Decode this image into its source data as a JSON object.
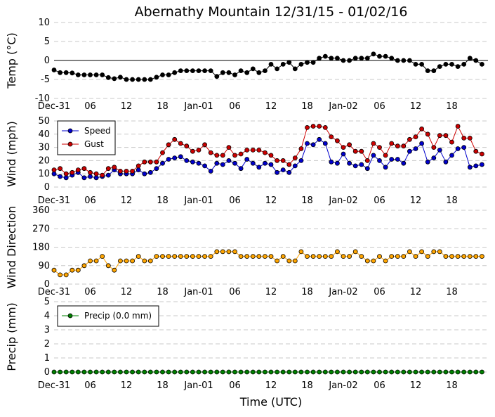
{
  "title": "Abernathy Mountain 12/31/15 - 01/02/16",
  "xlabel": "Time (UTC)",
  "x_tick_labels": [
    "Dec-31",
    "06",
    "12",
    "18",
    "Jan-01",
    "06",
    "12",
    "18",
    "Jan-02",
    "06",
    "12",
    "18"
  ],
  "colors": {
    "temp": "#000000",
    "speed": "#0000cc",
    "gust": "#cc0000",
    "dir": "#ffa500",
    "precip": "#008000"
  },
  "chart_data": [
    {
      "type": "line",
      "title": "",
      "ylabel": "Temp (°C)",
      "ylim": [
        -10,
        10
      ],
      "yticks": [
        -10,
        -5,
        0,
        5,
        10
      ],
      "x_hours": {
        "start": 0,
        "step": 1,
        "count": 72
      },
      "reference_line": 0,
      "series": [
        {
          "name": "Temp",
          "color": "#000000",
          "values": [
            -2.5,
            -3.2,
            -3.2,
            -3.3,
            -3.8,
            -3.8,
            -3.8,
            -3.8,
            -3.8,
            -4.5,
            -4.8,
            -4.4,
            -5,
            -5,
            -5,
            -5,
            -5,
            -4.4,
            -3.8,
            -3.8,
            -3.2,
            -2.7,
            -2.7,
            -2.7,
            -2.7,
            -2.7,
            -2.7,
            -4.2,
            -3.2,
            -3.2,
            -3.8,
            -2.7,
            -3.2,
            -2.2,
            -3.2,
            -2.7,
            -1,
            -2.2,
            -1,
            -0.5,
            -2.2,
            -1,
            -0.5,
            -0.5,
            0.6,
            1.1,
            0.6,
            0.6,
            0,
            0,
            0.6,
            0.6,
            0.6,
            1.7,
            1.1,
            1.1,
            0.6,
            0,
            0,
            0,
            -1,
            -1,
            -2.7,
            -2.7,
            -1.6,
            -1,
            -1,
            -1.6,
            -1,
            0.6,
            0,
            -1
          ]
        }
      ]
    },
    {
      "type": "line",
      "title": "",
      "ylabel": "Wind (mph)",
      "ylim": [
        0,
        50
      ],
      "yticks": [
        0,
        10,
        20,
        30,
        40,
        50
      ],
      "x_hours": {
        "start": 0,
        "step": 1,
        "count": 72
      },
      "legend": {
        "location": "top-left",
        "entries": [
          "Speed",
          "Gust"
        ]
      },
      "series": [
        {
          "name": "Speed",
          "color": "#0000cc",
          "values": [
            10,
            8,
            7,
            9,
            11,
            7,
            8,
            7,
            8,
            9,
            13,
            10,
            10,
            10,
            13,
            10,
            11,
            14,
            18,
            21,
            22,
            23,
            20,
            19,
            18,
            16,
            12,
            18,
            17,
            20,
            18,
            14,
            21,
            18,
            15,
            18,
            17,
            11,
            13,
            11,
            16,
            20,
            33,
            32,
            36,
            33,
            19,
            18,
            25,
            18,
            16,
            17,
            14,
            24,
            20,
            15,
            21,
            21,
            18,
            27,
            29,
            33,
            19,
            22,
            28,
            19,
            24,
            29,
            30,
            15,
            16,
            17
          ]
        },
        {
          "name": "Gust",
          "color": "#cc0000",
          "values": [
            13,
            14,
            10,
            11,
            13,
            14,
            11,
            10,
            9,
            14,
            15,
            12,
            12,
            12,
            16,
            19,
            19,
            19,
            26,
            32,
            36,
            33,
            31,
            27,
            28,
            32,
            26,
            24,
            24,
            30,
            24,
            25,
            28,
            28,
            28,
            26,
            24,
            20,
            20,
            17,
            22,
            29,
            45,
            46,
            46,
            45,
            38,
            35,
            30,
            32,
            27,
            27,
            20,
            33,
            30,
            24,
            33,
            31,
            31,
            36,
            38,
            44,
            40,
            30,
            39,
            39,
            34,
            46,
            37,
            37,
            27,
            25
          ]
        }
      ]
    },
    {
      "type": "scatter",
      "title": "",
      "ylabel": "Wind Direction",
      "ylim": [
        0,
        360
      ],
      "yticks": [
        0,
        90,
        180,
        270,
        360
      ],
      "x_hours": {
        "start": 0,
        "step": 1,
        "count": 72
      },
      "series": [
        {
          "name": "Direction",
          "color": "#ffa500",
          "values": [
            68,
            45,
            45,
            68,
            68,
            90,
            113,
            113,
            135,
            90,
            68,
            113,
            113,
            113,
            135,
            113,
            113,
            135,
            135,
            135,
            135,
            135,
            135,
            135,
            135,
            135,
            135,
            158,
            158,
            158,
            158,
            135,
            135,
            135,
            135,
            135,
            135,
            113,
            135,
            113,
            113,
            158,
            135,
            135,
            135,
            135,
            135,
            158,
            135,
            135,
            158,
            135,
            113,
            113,
            135,
            113,
            135,
            135,
            135,
            158,
            135,
            158,
            135,
            158,
            158,
            135,
            135,
            135,
            135,
            135,
            135,
            135
          ]
        }
      ]
    },
    {
      "type": "line",
      "title": "",
      "ylabel": "Precip (mm)",
      "ylim": [
        0,
        5
      ],
      "yticks": [
        0,
        1,
        2,
        3,
        4,
        5
      ],
      "x_hours": {
        "start": 0,
        "step": 1,
        "count": 72
      },
      "legend": {
        "location": "top-left",
        "entries": [
          "Precip (0.0 mm)"
        ]
      },
      "series": [
        {
          "name": "Precip (0.0 mm)",
          "color": "#008000",
          "values": [
            0,
            0,
            0,
            0,
            0,
            0,
            0,
            0,
            0,
            0,
            0,
            0,
            0,
            0,
            0,
            0,
            0,
            0,
            0,
            0,
            0,
            0,
            0,
            0,
            0,
            0,
            0,
            0,
            0,
            0,
            0,
            0,
            0,
            0,
            0,
            0,
            0,
            0,
            0,
            0,
            0,
            0,
            0,
            0,
            0,
            0,
            0,
            0,
            0,
            0,
            0,
            0,
            0,
            0,
            0,
            0,
            0,
            0,
            0,
            0,
            0,
            0,
            0,
            0,
            0,
            0,
            0,
            0,
            0,
            0,
            0,
            0
          ]
        }
      ]
    }
  ]
}
